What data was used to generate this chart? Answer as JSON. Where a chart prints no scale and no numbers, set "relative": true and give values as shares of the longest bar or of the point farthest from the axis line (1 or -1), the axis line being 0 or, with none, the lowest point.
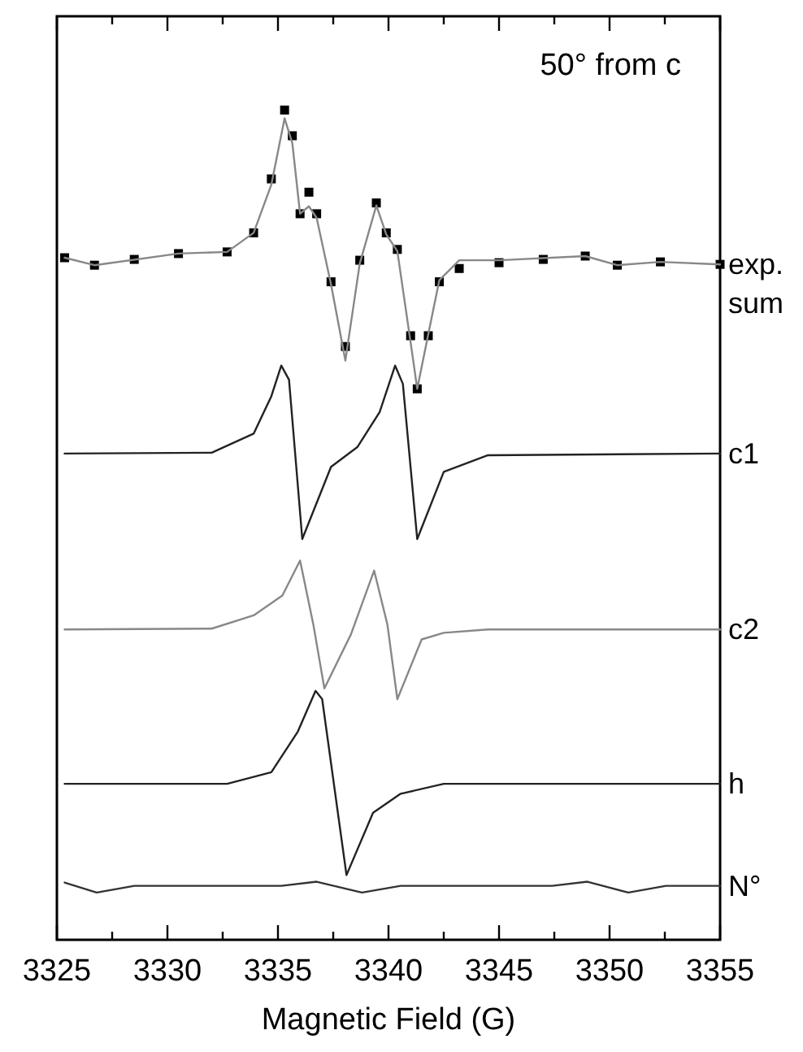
{
  "chart_data": {
    "type": "line",
    "relative": true,
    "xlabel": "Magnetic Field (G)",
    "annotations": [
      "50° from c"
    ],
    "xlim": [
      3325,
      3355
    ],
    "xticks": [
      3325,
      {
        "value": 3327.5,
        "label": null
      },
      3330,
      {
        "value": 3332.5,
        "label": null
      },
      3335,
      {
        "value": 3337.5,
        "label": null
      },
      3340,
      {
        "value": 3342.5,
        "label": null
      },
      3345,
      {
        "value": 3347.5,
        "label": null
      },
      3350,
      {
        "value": 3352.5,
        "label": null
      },
      3355
    ],
    "grid": false,
    "series": [
      {
        "name": "exp.",
        "type": "scatter",
        "marker": "square",
        "color": "#000000",
        "x": [
          3325.35,
          3326.7,
          3328.5,
          3330.5,
          3332.7,
          3333.9,
          3334.7,
          3335.3,
          3335.65,
          3336.0,
          3336.4,
          3336.75,
          3337.4,
          3338.05,
          3338.7,
          3339.45,
          3339.9,
          3340.4,
          3341.0,
          3341.3,
          3341.8,
          3342.3,
          3343.2,
          3345.0,
          3347.0,
          3348.9,
          3350.35,
          3352.3,
          3355.0
        ],
        "values": [
          0.822,
          0.813,
          0.82,
          0.827,
          0.829,
          0.852,
          0.917,
          1,
          0.969,
          0.875,
          0.901,
          0.875,
          0.793,
          0.715,
          0.819,
          0.888,
          0.852,
          0.832,
          0.728,
          0.664,
          0.728,
          0.793,
          0.809,
          0.816,
          0.82,
          0.824,
          0.813,
          0.817,
          0.814
        ]
      },
      {
        "name": "sum",
        "color": "#888888",
        "x": [
          3325.35,
          3326.7,
          3330.5,
          3332.7,
          3333.9,
          3334.7,
          3335.3,
          3335.65,
          3336.0,
          3336.4,
          3336.75,
          3337.4,
          3338.05,
          3338.7,
          3339.45,
          3339.9,
          3340.4,
          3341.0,
          3341.3,
          3341.8,
          3342.3,
          3343.2,
          3345.0,
          3348.9,
          3350.35,
          3352.3,
          3355.0
        ],
        "values": [
          0.822,
          0.813,
          0.827,
          0.829,
          0.852,
          0.91,
          0.99,
          0.96,
          0.875,
          0.884,
          0.87,
          0.79,
          0.698,
          0.815,
          0.885,
          0.85,
          0.83,
          0.72,
          0.664,
          0.73,
          0.795,
          0.819,
          0.819,
          0.824,
          0.813,
          0.817,
          0.814
        ]
      },
      {
        "name": "c1",
        "color": "#222222",
        "x": [
          3325.35,
          3332.0,
          3333.9,
          3334.7,
          3335.15,
          3335.5,
          3336.1,
          3337.4,
          3338.6,
          3339.6,
          3340.3,
          3340.65,
          3341.3,
          3342.5,
          3344.5,
          3355.0
        ],
        "values": [
          0.586,
          0.587,
          0.61,
          0.655,
          0.692,
          0.675,
          0.483,
          0.57,
          0.594,
          0.636,
          0.692,
          0.67,
          0.483,
          0.564,
          0.584,
          0.586
        ]
      },
      {
        "name": "c2",
        "color": "#888888",
        "x": [
          3325.35,
          3332.0,
          3333.9,
          3335.2,
          3336.0,
          3336.6,
          3337.1,
          3338.3,
          3339.35,
          3339.95,
          3340.4,
          3341.5,
          3342.5,
          3344.5,
          3355.0
        ],
        "values": [
          0.374,
          0.375,
          0.391,
          0.415,
          0.457,
          0.38,
          0.303,
          0.368,
          0.445,
          0.38,
          0.29,
          0.362,
          0.37,
          0.374,
          0.374
        ]
      },
      {
        "name": "h",
        "color": "#222222",
        "x": [
          3325.35,
          3332.7,
          3334.7,
          3335.9,
          3336.7,
          3337.0,
          3338.1,
          3339.3,
          3340.55,
          3342.5,
          3355.0
        ],
        "values": [
          0.188,
          0.188,
          0.202,
          0.251,
          0.3,
          0.29,
          0.078,
          0.153,
          0.176,
          0.188,
          0.188
        ]
      },
      {
        "name": "N°",
        "color": "#333333",
        "x": [
          3325.35,
          3326.8,
          3328.5,
          3335.15,
          3336.75,
          3338.8,
          3340.55,
          3347.4,
          3349.0,
          3350.85,
          3352.55,
          3355.0
        ],
        "values": [
          0.069,
          0.057,
          0.065,
          0.065,
          0.07,
          0.057,
          0.065,
          0.065,
          0.07,
          0.057,
          0.065,
          0.065
        ]
      }
    ]
  }
}
